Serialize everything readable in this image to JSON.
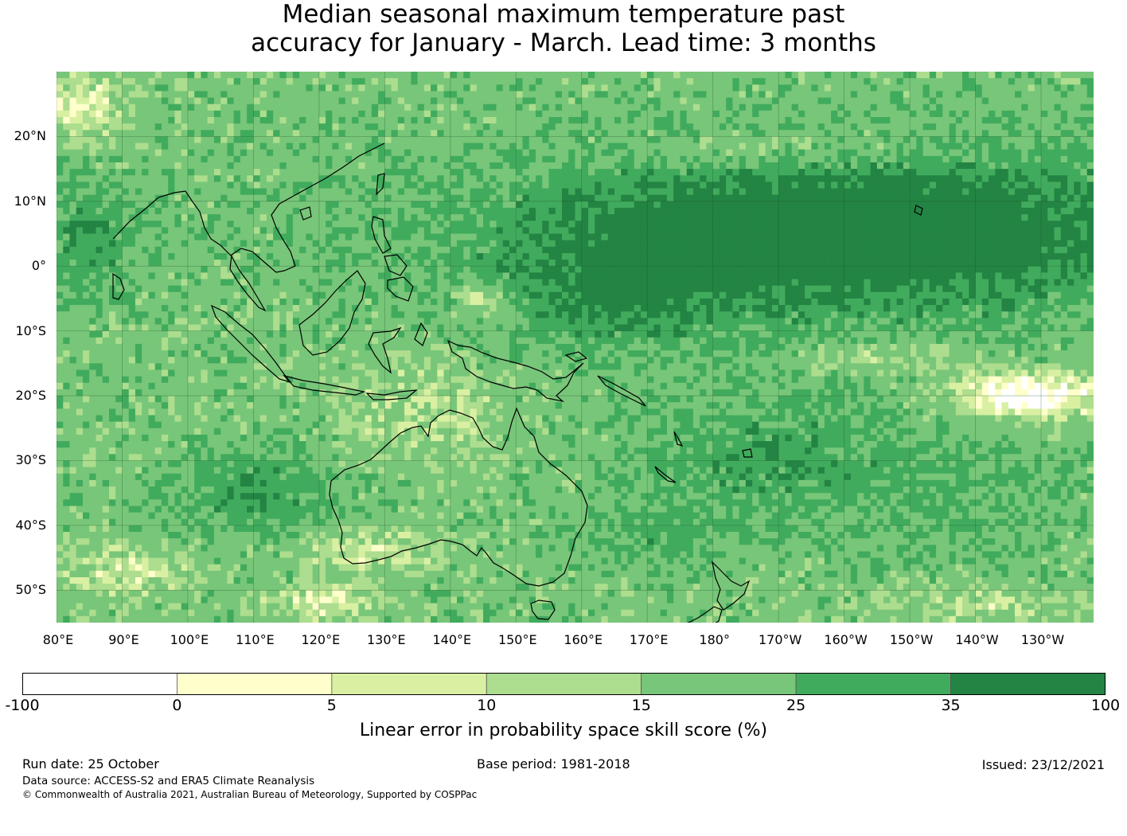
{
  "title": {
    "line1": "Median seasonal maximum temperature past",
    "line2": "accuracy for January - March. Lead time: 3 months"
  },
  "map": {
    "lon_range": [
      80,
      238
    ],
    "lat_range": [
      -55,
      30
    ],
    "lat_ticks": [
      {
        "value": 20,
        "label": "20°N"
      },
      {
        "value": 10,
        "label": "10°N"
      },
      {
        "value": 0,
        "label": "0°"
      },
      {
        "value": -10,
        "label": "10°S"
      },
      {
        "value": -20,
        "label": "20°S"
      },
      {
        "value": -30,
        "label": "30°S"
      },
      {
        "value": -40,
        "label": "40°S"
      },
      {
        "value": -50,
        "label": "50°S"
      }
    ],
    "lon_ticks": [
      {
        "value": 80,
        "label": "80°E"
      },
      {
        "value": 90,
        "label": "90°E"
      },
      {
        "value": 100,
        "label": "100°E"
      },
      {
        "value": 110,
        "label": "110°E"
      },
      {
        "value": 120,
        "label": "120°E"
      },
      {
        "value": 130,
        "label": "130°E"
      },
      {
        "value": 140,
        "label": "140°E"
      },
      {
        "value": 150,
        "label": "150°E"
      },
      {
        "value": 160,
        "label": "160°E"
      },
      {
        "value": 170,
        "label": "170°E"
      },
      {
        "value": 180,
        "label": "180°"
      },
      {
        "value": 190,
        "label": "170°W"
      },
      {
        "value": 200,
        "label": "160°W"
      },
      {
        "value": 210,
        "label": "150°W"
      },
      {
        "value": 220,
        "label": "140°W"
      },
      {
        "value": 230,
        "label": "130°W"
      }
    ]
  },
  "colorbar": {
    "colors": [
      "#ffffff",
      "#ffffcc",
      "#d9f0a3",
      "#addd8e",
      "#78c679",
      "#41ab5d",
      "#238443"
    ],
    "ticks": [
      "-100",
      "0",
      "5",
      "10",
      "15",
      "25",
      "35",
      "100"
    ],
    "label": "Linear error in probability space skill score (%)"
  },
  "footer": {
    "run_date": "Run date: 25 October",
    "base_period": "Base period: 1981-2018",
    "issued": "Issued: 23/12/2021",
    "source": "Data source: ACCESS-S2 and ERA5 Climate Reanalysis",
    "copyright": "© Commonwealth of Australia 2021, Australian Bureau of Meteorology, Supported by COSPPac"
  }
}
